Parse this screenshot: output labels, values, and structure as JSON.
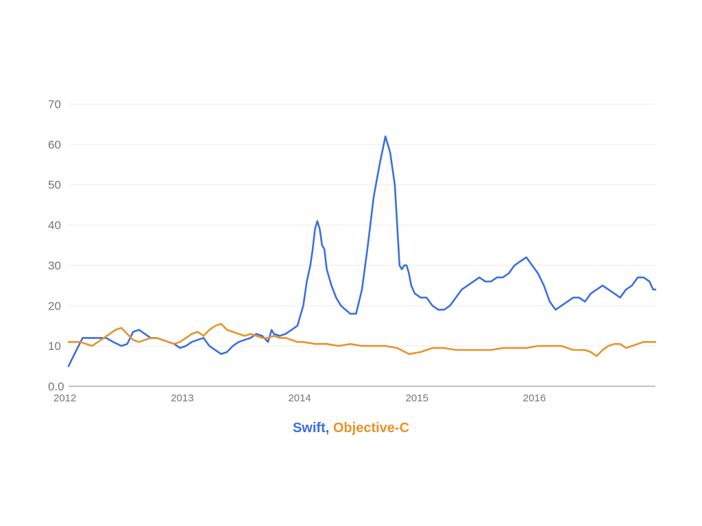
{
  "chart_data": {
    "type": "line",
    "title": "",
    "xlabel": "",
    "ylabel": "",
    "xlim": [
      2012,
      2017
    ],
    "ylim": [
      0,
      70
    ],
    "y_ticks": [
      0.0,
      10,
      20,
      30,
      40,
      50,
      60,
      70
    ],
    "y_tick_labels": [
      "0.0",
      "10",
      "20",
      "30",
      "40",
      "50",
      "60",
      "70"
    ],
    "x_ticks": [
      2012,
      2013,
      2014,
      2015,
      2016
    ],
    "x_tick_labels": [
      "2012",
      "2013",
      "2014",
      "2015",
      "2016"
    ],
    "grid": true,
    "legend_position": "bottom-center",
    "series": [
      {
        "name": "Swift",
        "color": "#3a6fe0",
        "x": [
          2012.0,
          2012.05,
          2012.12,
          2012.18,
          2012.22,
          2012.28,
          2012.32,
          2012.38,
          2012.45,
          2012.5,
          2012.55,
          2012.6,
          2012.65,
          2012.7,
          2012.75,
          2012.8,
          2012.85,
          2012.9,
          2012.95,
          2013.0,
          2013.05,
          2013.1,
          2013.15,
          2013.2,
          2013.25,
          2013.3,
          2013.35,
          2013.4,
          2013.45,
          2013.5,
          2013.55,
          2013.6,
          2013.65,
          2013.7,
          2013.73,
          2013.75,
          2013.8,
          2013.85,
          2013.9,
          2013.95,
          2014.0,
          2014.03,
          2014.06,
          2014.08,
          2014.1,
          2014.12,
          2014.14,
          2014.16,
          2014.18,
          2014.2,
          2014.24,
          2014.28,
          2014.32,
          2014.36,
          2014.4,
          2014.45,
          2014.5,
          2014.55,
          2014.6,
          2014.65,
          2014.7,
          2014.74,
          2014.78,
          2014.82,
          2014.84,
          2014.86,
          2014.88,
          2014.9,
          2014.92,
          2014.95,
          2015.0,
          2015.05,
          2015.1,
          2015.15,
          2015.2,
          2015.25,
          2015.3,
          2015.35,
          2015.4,
          2015.45,
          2015.5,
          2015.55,
          2015.6,
          2015.65,
          2015.7,
          2015.75,
          2015.8,
          2015.85,
          2015.9,
          2015.95,
          2016.0,
          2016.05,
          2016.1,
          2016.15,
          2016.2,
          2016.25,
          2016.3,
          2016.35,
          2016.4,
          2016.45,
          2016.5,
          2016.55,
          2016.6,
          2016.65,
          2016.7,
          2016.75,
          2016.8,
          2016.85,
          2016.9,
          2016.95,
          2016.98,
          2017.0
        ],
        "values": [
          5,
          8,
          12,
          12,
          12,
          12,
          12,
          11,
          10,
          10.5,
          13.5,
          14,
          13,
          12,
          12,
          11.5,
          11,
          10.5,
          9.5,
          10,
          11,
          11.5,
          12,
          10,
          9,
          8,
          8.5,
          10,
          11,
          11.5,
          12,
          13,
          12.5,
          11,
          14,
          13,
          12.5,
          13,
          14,
          15,
          20,
          26,
          30,
          34,
          39,
          41,
          39,
          35,
          34,
          29,
          25,
          22,
          20,
          19,
          18,
          18,
          24,
          35,
          47,
          55,
          62,
          58,
          50,
          30,
          29,
          30,
          30,
          28,
          25,
          23,
          22,
          22,
          20,
          19,
          19,
          20,
          22,
          24,
          25,
          26,
          27,
          26,
          26,
          27,
          27,
          28,
          30,
          31,
          32,
          30,
          28,
          25,
          21,
          19,
          20,
          21,
          22,
          22,
          21,
          23,
          24,
          25,
          24,
          23,
          22,
          24,
          25,
          27,
          27,
          26,
          24,
          24
        ]
      },
      {
        "name": "Objective-C",
        "color": "#e8922a",
        "x": [
          2012.0,
          2012.05,
          2012.1,
          2012.15,
          2012.2,
          2012.25,
          2012.3,
          2012.35,
          2012.4,
          2012.45,
          2012.5,
          2012.55,
          2012.6,
          2012.65,
          2012.7,
          2012.75,
          2012.8,
          2012.85,
          2012.9,
          2012.95,
          2013.0,
          2013.05,
          2013.1,
          2013.15,
          2013.2,
          2013.25,
          2013.3,
          2013.35,
          2013.4,
          2013.45,
          2013.5,
          2013.55,
          2013.6,
          2013.65,
          2013.7,
          2013.75,
          2013.8,
          2013.85,
          2013.9,
          2013.95,
          2014.0,
          2014.1,
          2014.2,
          2014.3,
          2014.4,
          2014.5,
          2014.6,
          2014.7,
          2014.8,
          2014.9,
          2015.0,
          2015.1,
          2015.2,
          2015.3,
          2015.4,
          2015.5,
          2015.6,
          2015.7,
          2015.8,
          2015.9,
          2016.0,
          2016.1,
          2016.2,
          2016.3,
          2016.4,
          2016.45,
          2016.5,
          2016.55,
          2016.6,
          2016.65,
          2016.7,
          2016.75,
          2016.8,
          2016.85,
          2016.9,
          2016.95,
          2017.0
        ],
        "values": [
          11,
          11,
          11,
          10.5,
          10,
          11,
          12,
          13,
          14,
          14.5,
          13,
          11.5,
          11,
          11.5,
          12,
          12,
          11.5,
          11,
          10.5,
          11,
          12,
          13,
          13.5,
          12.5,
          14,
          15,
          15.5,
          14,
          13.5,
          13,
          12.5,
          13,
          12.5,
          12,
          12,
          12.5,
          12,
          12,
          11.5,
          11,
          11,
          10.5,
          10.5,
          10,
          10.5,
          10,
          10,
          10,
          9.5,
          8,
          8.5,
          9.5,
          9.5,
          9,
          9,
          9,
          9,
          9.5,
          9.5,
          9.5,
          10,
          10,
          10,
          9,
          9,
          8.5,
          7.5,
          9,
          10,
          10.5,
          10.5,
          9.5,
          10,
          10.5,
          11,
          11,
          11
        ]
      }
    ]
  },
  "legend": {
    "swift_label": "Swift,",
    "objc_label": "Objective-C"
  }
}
